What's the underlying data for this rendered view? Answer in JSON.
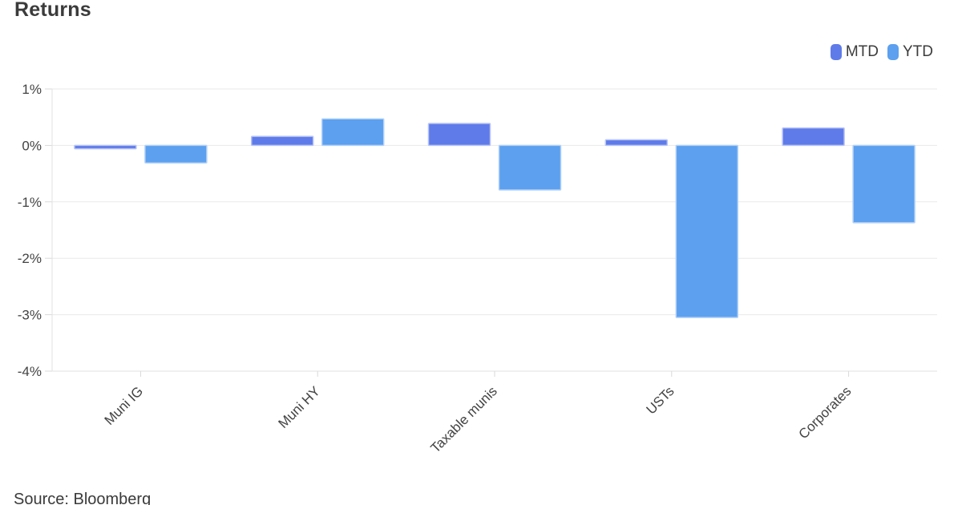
{
  "page": {
    "title": "Returns",
    "source": "Source: Bloomberg"
  },
  "legend": {
    "items": [
      {
        "label": "MTD",
        "color": "#5F7BE9"
      },
      {
        "label": "YTD",
        "color": "#5CA0EF"
      }
    ]
  },
  "chart_data": {
    "type": "bar",
    "title": "Returns",
    "categories": [
      "Muni IG",
      "Muni HY",
      "Taxable munis",
      "USTs",
      "Corporates"
    ],
    "series": [
      {
        "name": "MTD",
        "color": "#5F7BE9",
        "border_color": "#B7C4F5",
        "values": [
          -0.06,
          0.16,
          0.39,
          0.1,
          0.31
        ]
      },
      {
        "name": "YTD",
        "color": "#5CA0EF",
        "border_color": "#B2D1F8",
        "values": [
          -0.31,
          0.47,
          -0.79,
          -3.05,
          -1.37
        ]
      }
    ],
    "xlabel": "",
    "ylabel": "",
    "ylim": [
      -4,
      1
    ],
    "ytick_step": 1,
    "ytick_labels": [
      "1%",
      "0%",
      "-1%",
      "-2%",
      "-3%",
      "-4%"
    ],
    "grid": true,
    "legend_position": "top-right",
    "x_label_rotation": -45,
    "source": "Source: Bloomberg",
    "colors": {
      "grid": "#eaeaea",
      "axis": "#e2e2e2",
      "tick": "#d9d9d9",
      "axis_text": "#434343"
    }
  }
}
